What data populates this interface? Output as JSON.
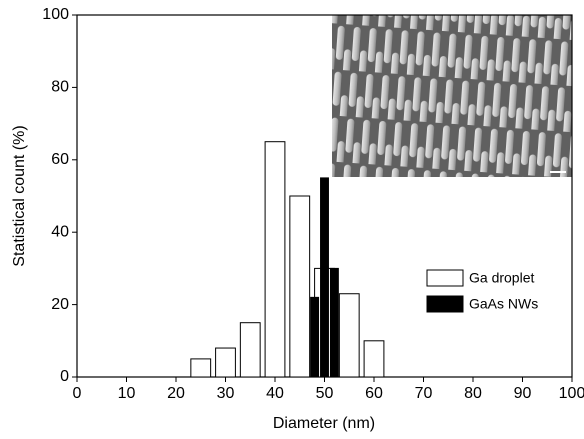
{
  "chart_data": {
    "type": "bar",
    "xlabel": "Diameter (nm)",
    "ylabel": "Statistical count (%)",
    "xlim": [
      0,
      100
    ],
    "xticks": [
      0,
      10,
      20,
      30,
      40,
      50,
      60,
      70,
      80,
      90,
      100
    ],
    "ylim": [
      0,
      100
    ],
    "yticks": [
      0,
      20,
      40,
      60,
      80,
      100
    ],
    "legend": "center right",
    "series": [
      {
        "name": "Ga droplet",
        "color": "#ffffff",
        "x": [
          25,
          30,
          35,
          40,
          45,
          50,
          55,
          60
        ],
        "values": [
          5,
          8,
          15,
          65,
          50,
          30,
          23,
          10
        ]
      },
      {
        "name": "GaAs NWs",
        "color": "#000000",
        "x": [
          48,
          50,
          52
        ],
        "values": [
          22,
          55,
          30
        ]
      }
    ]
  }
}
